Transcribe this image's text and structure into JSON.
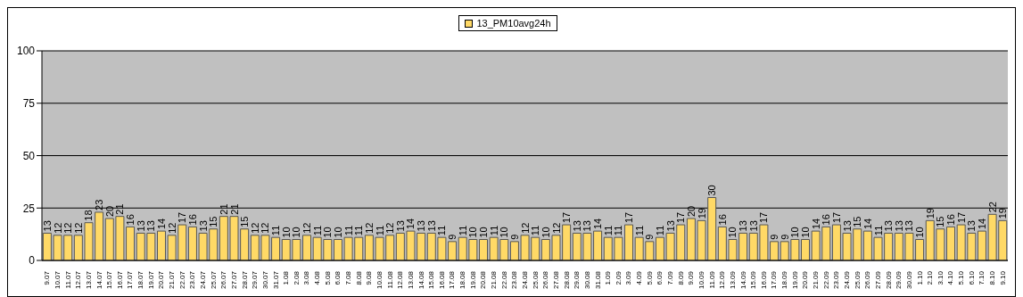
{
  "chart_data": {
    "type": "bar",
    "categories": [
      "9.07",
      "10.07",
      "11.07",
      "12.07",
      "13.07",
      "14.07",
      "15.07",
      "16.07",
      "17.07",
      "18.07",
      "19.07",
      "20.07",
      "21.07",
      "22.07",
      "23.07",
      "24.07",
      "25.07",
      "26.07",
      "27.07",
      "28.07",
      "29.07",
      "30.07",
      "31.07",
      "1.08",
      "2.08",
      "3.08",
      "4.08",
      "5.08",
      "6.08",
      "7.08",
      "8.08",
      "9.08",
      "10.08",
      "11.08",
      "12.08",
      "13.08",
      "14.08",
      "15.08",
      "16.08",
      "17.08",
      "18.08",
      "19.08",
      "20.08",
      "21.08",
      "22.08",
      "23.08",
      "24.08",
      "25.08",
      "26.08",
      "27.08",
      "28.08",
      "29.08",
      "30.08",
      "31.08",
      "1.09",
      "2.09",
      "3.09",
      "4.09",
      "5.09",
      "6.09",
      "7.09",
      "8.09",
      "9.09",
      "10.09",
      "11.09",
      "12.09",
      "13.09",
      "14.09",
      "15.09",
      "16.09",
      "17.09",
      "18.09",
      "19.09",
      "20.09",
      "21.09",
      "22.09",
      "23.09",
      "24.09",
      "25.09",
      "26.09",
      "27.09",
      "28.09",
      "29.09",
      "30.09",
      "1.10",
      "2.10",
      "3.10",
      "4.10",
      "5.10",
      "6.10",
      "7.10",
      "8.10",
      "9.10"
    ],
    "series": [
      {
        "name": "13_PM10avg24h",
        "color": "#ffd966",
        "values": [
          13,
          12,
          12,
          12,
          18,
          23,
          20,
          21,
          16,
          13,
          13,
          14,
          12,
          17,
          16,
          13,
          15,
          21,
          21,
          15,
          12,
          12,
          11,
          10,
          10,
          12,
          11,
          10,
          10,
          11,
          11,
          12,
          11,
          12,
          13,
          14,
          13,
          13,
          11,
          9,
          11,
          10,
          10,
          11,
          10,
          9,
          12,
          11,
          10,
          12,
          17,
          13,
          13,
          14,
          11,
          11,
          17,
          11,
          9,
          11,
          13,
          17,
          20,
          19,
          30,
          16,
          10,
          13,
          13,
          17,
          9,
          9,
          10,
          10,
          14,
          16,
          17,
          13,
          15,
          14,
          11,
          13,
          13,
          13,
          10,
          19,
          15,
          16,
          17,
          13,
          14,
          22,
          19
        ]
      }
    ],
    "ylim": [
      0,
      100
    ],
    "yticks": [
      0,
      25,
      50,
      75,
      100
    ],
    "grid": "y",
    "legend": "top",
    "data_labels": true
  }
}
